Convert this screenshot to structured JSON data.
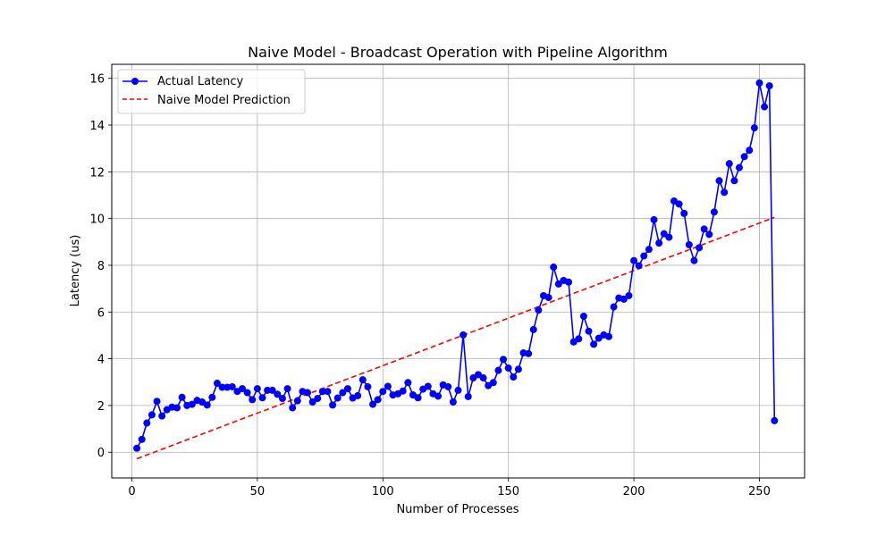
{
  "chart_data": {
    "type": "line",
    "title": "Naive Model - Broadcast Operation with Pipeline Algorithm",
    "xlabel": "Number of Processes",
    "ylabel": "Latency (us)",
    "xlim": [
      -8,
      268
    ],
    "ylim": [
      -1.1,
      16.6
    ],
    "xticks": [
      0,
      50,
      100,
      150,
      200,
      250
    ],
    "yticks": [
      0,
      2,
      4,
      6,
      8,
      10,
      12,
      14,
      16
    ],
    "grid": true,
    "legend_position": "top-left",
    "series": [
      {
        "name": "Actual Latency",
        "style": "solid-line-with-circle-markers",
        "color": "#0000ff",
        "points": [
          [
            2,
            0.17
          ],
          [
            4,
            0.55
          ],
          [
            6,
            1.25
          ],
          [
            8,
            1.6
          ],
          [
            10,
            2.18
          ],
          [
            12,
            1.55
          ],
          [
            14,
            1.82
          ],
          [
            16,
            1.93
          ],
          [
            18,
            1.9
          ],
          [
            20,
            2.35
          ],
          [
            22,
            2.0
          ],
          [
            24,
            2.05
          ],
          [
            26,
            2.22
          ],
          [
            28,
            2.15
          ],
          [
            30,
            2.02
          ],
          [
            32,
            2.35
          ],
          [
            34,
            2.95
          ],
          [
            36,
            2.78
          ],
          [
            38,
            2.78
          ],
          [
            40,
            2.8
          ],
          [
            42,
            2.6
          ],
          [
            44,
            2.72
          ],
          [
            46,
            2.55
          ],
          [
            48,
            2.25
          ],
          [
            50,
            2.72
          ],
          [
            52,
            2.33
          ],
          [
            54,
            2.65
          ],
          [
            56,
            2.65
          ],
          [
            58,
            2.48
          ],
          [
            60,
            2.3
          ],
          [
            62,
            2.72
          ],
          [
            64,
            1.9
          ],
          [
            66,
            2.2
          ],
          [
            68,
            2.6
          ],
          [
            70,
            2.55
          ],
          [
            72,
            2.15
          ],
          [
            74,
            2.3
          ],
          [
            76,
            2.6
          ],
          [
            78,
            2.6
          ],
          [
            80,
            2.02
          ],
          [
            82,
            2.32
          ],
          [
            84,
            2.55
          ],
          [
            86,
            2.72
          ],
          [
            88,
            2.32
          ],
          [
            90,
            2.42
          ],
          [
            92,
            3.1
          ],
          [
            94,
            2.8
          ],
          [
            96,
            2.05
          ],
          [
            98,
            2.25
          ],
          [
            100,
            2.6
          ],
          [
            102,
            2.82
          ],
          [
            104,
            2.45
          ],
          [
            106,
            2.5
          ],
          [
            108,
            2.62
          ],
          [
            110,
            2.98
          ],
          [
            112,
            2.45
          ],
          [
            114,
            2.33
          ],
          [
            116,
            2.7
          ],
          [
            118,
            2.82
          ],
          [
            120,
            2.5
          ],
          [
            122,
            2.4
          ],
          [
            124,
            2.88
          ],
          [
            126,
            2.8
          ],
          [
            128,
            2.15
          ],
          [
            130,
            2.65
          ],
          [
            132,
            5.02
          ],
          [
            134,
            2.38
          ],
          [
            136,
            3.18
          ],
          [
            138,
            3.32
          ],
          [
            140,
            3.18
          ],
          [
            142,
            2.85
          ],
          [
            144,
            2.98
          ],
          [
            146,
            3.5
          ],
          [
            148,
            3.97
          ],
          [
            150,
            3.6
          ],
          [
            152,
            3.22
          ],
          [
            154,
            3.55
          ],
          [
            156,
            4.25
          ],
          [
            158,
            4.22
          ],
          [
            160,
            5.25
          ],
          [
            162,
            6.08
          ],
          [
            164,
            6.7
          ],
          [
            166,
            6.62
          ],
          [
            168,
            7.92
          ],
          [
            170,
            7.2
          ],
          [
            172,
            7.35
          ],
          [
            174,
            7.28
          ],
          [
            176,
            4.72
          ],
          [
            178,
            4.85
          ],
          [
            180,
            5.82
          ],
          [
            182,
            5.18
          ],
          [
            184,
            4.62
          ],
          [
            186,
            4.88
          ],
          [
            188,
            5.02
          ],
          [
            190,
            4.95
          ],
          [
            192,
            6.22
          ],
          [
            194,
            6.6
          ],
          [
            196,
            6.55
          ],
          [
            198,
            6.7
          ],
          [
            200,
            8.2
          ],
          [
            202,
            7.98
          ],
          [
            204,
            8.4
          ],
          [
            206,
            8.68
          ],
          [
            208,
            9.95
          ],
          [
            210,
            8.95
          ],
          [
            212,
            9.35
          ],
          [
            214,
            9.2
          ],
          [
            216,
            10.75
          ],
          [
            218,
            10.62
          ],
          [
            220,
            10.22
          ],
          [
            222,
            8.88
          ],
          [
            224,
            8.2
          ],
          [
            226,
            8.75
          ],
          [
            228,
            9.55
          ],
          [
            230,
            9.32
          ],
          [
            232,
            10.28
          ],
          [
            234,
            11.62
          ],
          [
            236,
            11.12
          ],
          [
            238,
            12.35
          ],
          [
            240,
            11.62
          ],
          [
            242,
            12.18
          ],
          [
            244,
            12.65
          ],
          [
            246,
            12.92
          ],
          [
            248,
            13.88
          ],
          [
            250,
            15.8
          ],
          [
            252,
            14.78
          ],
          [
            254,
            15.68
          ],
          [
            256,
            1.35
          ]
        ]
      },
      {
        "name": "Naive Model Prediction",
        "style": "dashed-line",
        "color": "#ff0000",
        "points": [
          [
            2,
            -0.28
          ],
          [
            256,
            10.05
          ]
        ]
      }
    ]
  }
}
